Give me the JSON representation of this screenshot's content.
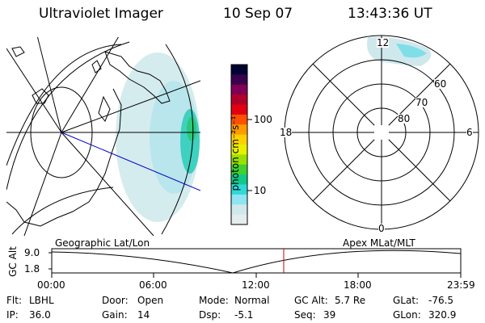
{
  "header": {
    "instrument": "Ultraviolet Imager",
    "date": "10 Sep 07",
    "time": "13:43:36 UT"
  },
  "map_labels": {
    "left_caption": "Geographic Lat/Lon",
    "right_caption": "Apex MLat/MLT"
  },
  "polar_plot": {
    "mlt_labels": {
      "top": "12",
      "left": "18",
      "right": "6",
      "bottom": "0"
    },
    "mlat_labels": [
      "60",
      "70",
      "80"
    ]
  },
  "colorbar": {
    "unit_label": "photon cm⁻²s⁻¹",
    "ticks": [
      "100",
      "10"
    ],
    "colors": [
      "#000033",
      "#3a0050",
      "#800055",
      "#b0002a",
      "#e00010",
      "#ff5000",
      "#ff9a00",
      "#ffd000",
      "#e8f000",
      "#9ae000",
      "#40d030",
      "#10c888",
      "#30d8d8",
      "#8fe4f0",
      "#cfe8ec",
      "#e4ecee"
    ]
  },
  "altitude_plot": {
    "y_axis_label": "GC Alt",
    "y_ticks": [
      "9.0",
      "1.8"
    ],
    "x_ticks": [
      "00:00",
      "06:00",
      "12:00",
      "18:00",
      "23:59"
    ],
    "current_marker_time": "13:43:36"
  },
  "status": {
    "flt_label": "Flt:",
    "flt_value": "LBHL",
    "ip_label": "IP:",
    "ip_value": "36.0",
    "door_label": "Door:",
    "door_value": "Open",
    "gain_label": "Gain:",
    "gain_value": "14",
    "mode_label": "Mode:",
    "mode_value": "Normal",
    "dsp_label": "Dsp:",
    "dsp_value": "-5.1",
    "gcalt_label": "GC Alt:",
    "gcalt_value": "5.7 Re",
    "seq_label": "Seq:",
    "seq_value": "39",
    "glat_label": "GLat:",
    "glat_value": "-76.5",
    "glon_label": "GLon:",
    "glon_value": "320.9"
  }
}
